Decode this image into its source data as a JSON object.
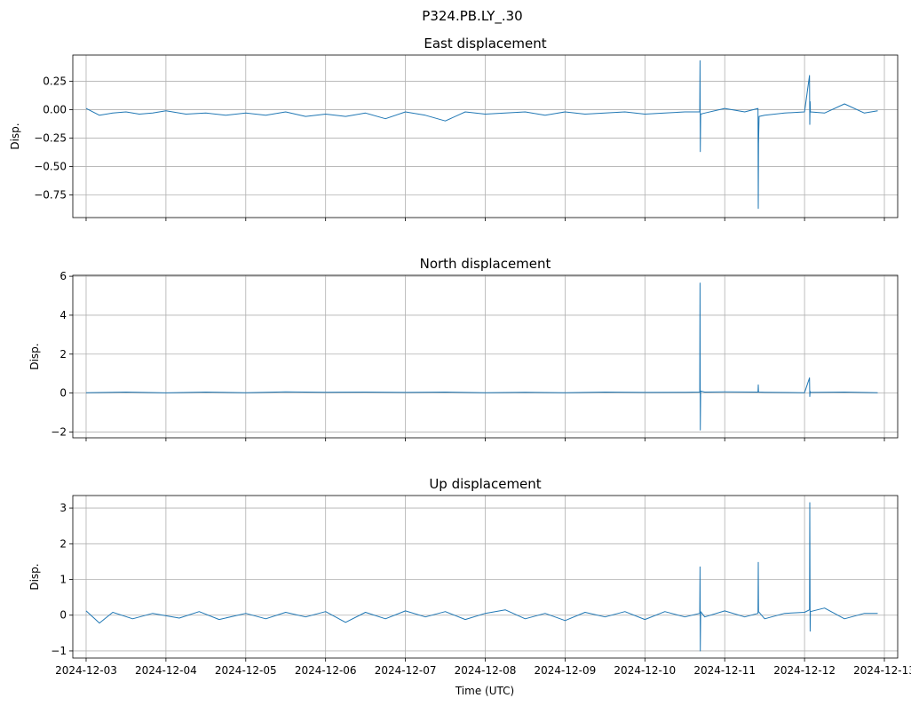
{
  "figure": {
    "suptitle": "P324.PB.LY_.30",
    "xlabel": "Time (UTC)"
  },
  "chart_data": [
    {
      "type": "line",
      "title": "East displacement",
      "ylabel": "Disp.",
      "xlim": [
        "2024-12-02T20:00",
        "2024-12-13T04:00"
      ],
      "ylim": [
        -0.95,
        0.48
      ],
      "yticks": [
        0.25,
        0.0,
        -0.25,
        -0.5,
        -0.75
      ],
      "ytick_labels": [
        "0.25",
        "0.00",
        "−0.25",
        "−0.50",
        "−0.75"
      ],
      "grid": true,
      "color": "#1f77b4",
      "series": [
        {
          "x": [
            "2024-12-03T00:00",
            "2024-12-03T04:00",
            "2024-12-03T08:00",
            "2024-12-03T12:00",
            "2024-12-03T16:00",
            "2024-12-03T20:00",
            "2024-12-04T00:00",
            "2024-12-04T06:00",
            "2024-12-04T12:00",
            "2024-12-04T18:00",
            "2024-12-05T00:00",
            "2024-12-05T06:00",
            "2024-12-05T12:00",
            "2024-12-05T18:00",
            "2024-12-06T00:00",
            "2024-12-06T06:00",
            "2024-12-06T12:00",
            "2024-12-06T18:00",
            "2024-12-07T00:00",
            "2024-12-07T06:00",
            "2024-12-07T12:00",
            "2024-12-07T18:00",
            "2024-12-08T00:00",
            "2024-12-08T06:00",
            "2024-12-08T12:00",
            "2024-12-08T18:00",
            "2024-12-09T00:00",
            "2024-12-09T06:00",
            "2024-12-09T12:00",
            "2024-12-09T18:00",
            "2024-12-10T00:00",
            "2024-12-10T06:00",
            "2024-12-10T12:00",
            "2024-12-10T16:30",
            "2024-12-10T16:35",
            "2024-12-10T16:40",
            "2024-12-10T16:45",
            "2024-12-10T18:00",
            "2024-12-11T00:00",
            "2024-12-11T06:00",
            "2024-12-11T10:00",
            "2024-12-11T10:05",
            "2024-12-11T10:10",
            "2024-12-11T10:20",
            "2024-12-11T12:00",
            "2024-12-11T18:00",
            "2024-12-12T00:00",
            "2024-12-12T01:30",
            "2024-12-12T01:35",
            "2024-12-12T01:40",
            "2024-12-12T01:45",
            "2024-12-12T06:00",
            "2024-12-12T12:00",
            "2024-12-12T18:00",
            "2024-12-12T22:00"
          ],
          "y": [
            0.01,
            -0.05,
            -0.03,
            -0.02,
            -0.04,
            -0.03,
            -0.01,
            -0.04,
            -0.03,
            -0.05,
            -0.03,
            -0.05,
            -0.02,
            -0.06,
            -0.04,
            -0.06,
            -0.03,
            -0.08,
            -0.02,
            -0.05,
            -0.1,
            -0.02,
            -0.04,
            -0.03,
            -0.02,
            -0.05,
            -0.02,
            -0.04,
            -0.03,
            -0.02,
            -0.04,
            -0.03,
            -0.02,
            -0.02,
            0.43,
            -0.37,
            -0.04,
            -0.03,
            0.01,
            -0.02,
            0.01,
            -0.87,
            -0.3,
            -0.06,
            -0.05,
            -0.03,
            -0.02,
            0.3,
            -0.13,
            0.07,
            -0.02,
            -0.03,
            0.05,
            -0.03,
            -0.01
          ]
        }
      ]
    },
    {
      "type": "line",
      "title": "North displacement",
      "ylabel": "Disp.",
      "xlim": [
        "2024-12-02T20:00",
        "2024-12-13T04:00"
      ],
      "ylim": [
        -2.3,
        6.05
      ],
      "yticks": [
        6,
        4,
        2,
        0,
        -2
      ],
      "ytick_labels": [
        "6",
        "4",
        "2",
        "0",
        "−2"
      ],
      "grid": true,
      "color": "#1f77b4",
      "series": [
        {
          "x": [
            "2024-12-03T00:00",
            "2024-12-03T12:00",
            "2024-12-04T00:00",
            "2024-12-04T12:00",
            "2024-12-05T00:00",
            "2024-12-05T12:00",
            "2024-12-06T00:00",
            "2024-12-06T12:00",
            "2024-12-07T00:00",
            "2024-12-07T12:00",
            "2024-12-08T00:00",
            "2024-12-08T12:00",
            "2024-12-09T00:00",
            "2024-12-09T12:00",
            "2024-12-10T00:00",
            "2024-12-10T12:00",
            "2024-12-10T16:30",
            "2024-12-10T16:35",
            "2024-12-10T16:40",
            "2024-12-10T16:45",
            "2024-12-10T18:00",
            "2024-12-11T00:00",
            "2024-12-11T10:00",
            "2024-12-11T10:05",
            "2024-12-11T10:10",
            "2024-12-11T12:00",
            "2024-12-12T00:00",
            "2024-12-12T01:30",
            "2024-12-12T01:35",
            "2024-12-12T01:40",
            "2024-12-12T01:45",
            "2024-12-12T12:00",
            "2024-12-12T22:00"
          ],
          "y": [
            0.02,
            0.05,
            0.01,
            0.05,
            0.02,
            0.06,
            0.04,
            0.05,
            0.03,
            0.05,
            0.02,
            0.04,
            0.02,
            0.05,
            0.03,
            0.04,
            0.05,
            5.65,
            -1.9,
            0.1,
            0.05,
            0.06,
            0.05,
            0.42,
            0.05,
            0.04,
            0.02,
            0.78,
            -0.18,
            0.08,
            0.03,
            0.05,
            0.02
          ]
        }
      ]
    },
    {
      "type": "line",
      "title": "Up displacement",
      "ylabel": "Disp.",
      "xlim": [
        "2024-12-02T20:00",
        "2024-12-13T04:00"
      ],
      "ylim": [
        -1.2,
        3.35
      ],
      "yticks": [
        3,
        2,
        1,
        0,
        -1
      ],
      "ytick_labels": [
        "3",
        "2",
        "1",
        "0",
        "−1"
      ],
      "grid": true,
      "color": "#1f77b4",
      "series": [
        {
          "x": [
            "2024-12-03T00:00",
            "2024-12-03T04:00",
            "2024-12-03T08:00",
            "2024-12-03T14:00",
            "2024-12-03T20:00",
            "2024-12-04T04:00",
            "2024-12-04T10:00",
            "2024-12-04T16:00",
            "2024-12-05T00:00",
            "2024-12-05T06:00",
            "2024-12-05T12:00",
            "2024-12-05T18:00",
            "2024-12-06T00:00",
            "2024-12-06T06:00",
            "2024-12-06T12:00",
            "2024-12-06T18:00",
            "2024-12-07T00:00",
            "2024-12-07T06:00",
            "2024-12-07T12:00",
            "2024-12-07T18:00",
            "2024-12-08T00:00",
            "2024-12-08T06:00",
            "2024-12-08T12:00",
            "2024-12-08T18:00",
            "2024-12-09T00:00",
            "2024-12-09T06:00",
            "2024-12-09T12:00",
            "2024-12-09T18:00",
            "2024-12-10T00:00",
            "2024-12-10T06:00",
            "2024-12-10T12:00",
            "2024-12-10T16:30",
            "2024-12-10T16:35",
            "2024-12-10T16:40",
            "2024-12-10T16:45",
            "2024-12-10T18:00",
            "2024-12-11T00:00",
            "2024-12-11T06:00",
            "2024-12-11T10:00",
            "2024-12-11T10:05",
            "2024-12-11T10:10",
            "2024-12-11T12:00",
            "2024-12-11T18:00",
            "2024-12-12T00:00",
            "2024-12-12T01:30",
            "2024-12-12T01:35",
            "2024-12-12T01:40",
            "2024-12-12T01:45",
            "2024-12-12T06:00",
            "2024-12-12T12:00",
            "2024-12-12T18:00",
            "2024-12-12T22:00"
          ],
          "y": [
            0.12,
            -0.22,
            0.08,
            -0.1,
            0.05,
            -0.08,
            0.1,
            -0.12,
            0.05,
            -0.1,
            0.08,
            -0.05,
            0.1,
            -0.2,
            0.08,
            -0.1,
            0.12,
            -0.05,
            0.1,
            -0.12,
            0.05,
            0.15,
            -0.1,
            0.05,
            -0.15,
            0.08,
            -0.05,
            0.1,
            -0.12,
            0.1,
            -0.05,
            0.05,
            1.35,
            -1.0,
            0.1,
            -0.05,
            0.12,
            -0.05,
            0.05,
            1.48,
            0.1,
            -0.1,
            0.05,
            0.08,
            0.15,
            3.15,
            -0.45,
            0.1,
            0.2,
            -0.1,
            0.05,
            0.05
          ]
        }
      ]
    }
  ]
}
